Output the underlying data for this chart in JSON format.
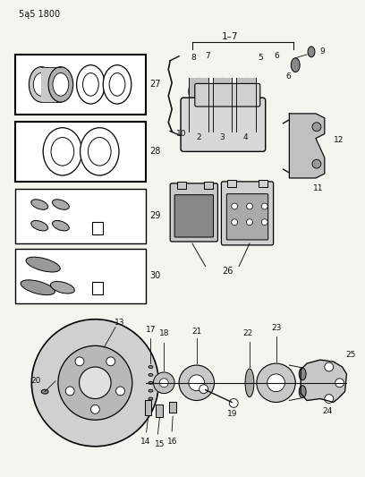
{
  "title": "5ą5 1800",
  "bg_color": "#f5f5f0",
  "fg_color": "#111111",
  "fig_width": 4.08,
  "fig_height": 5.33,
  "dpi": 100
}
